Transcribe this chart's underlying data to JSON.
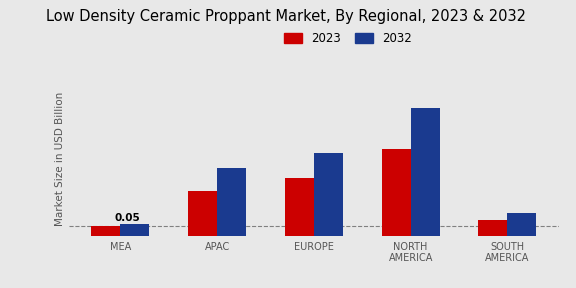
{
  "title": "Low Density Ceramic Proppant Market, By Regional, 2023 & 2032",
  "ylabel": "Market Size in USD Billion",
  "categories": [
    "MEA",
    "APAC",
    "EUROPE",
    "NORTH\nAMERICA",
    "SOUTH\nAMERICA"
  ],
  "values_2023": [
    0.05,
    0.22,
    0.28,
    0.42,
    0.08
  ],
  "values_2032": [
    0.06,
    0.33,
    0.4,
    0.62,
    0.11
  ],
  "color_2023": "#cc0000",
  "color_2032": "#1a3a8f",
  "annotation_value": "0.05",
  "dashed_line_y": 0.05,
  "background_color": "#e8e8e8",
  "legend_labels": [
    "2023",
    "2032"
  ],
  "title_fontsize": 10.5,
  "axis_label_fontsize": 7.5,
  "tick_fontsize": 7,
  "bar_width": 0.3,
  "ylim": [
    0,
    0.75
  ]
}
